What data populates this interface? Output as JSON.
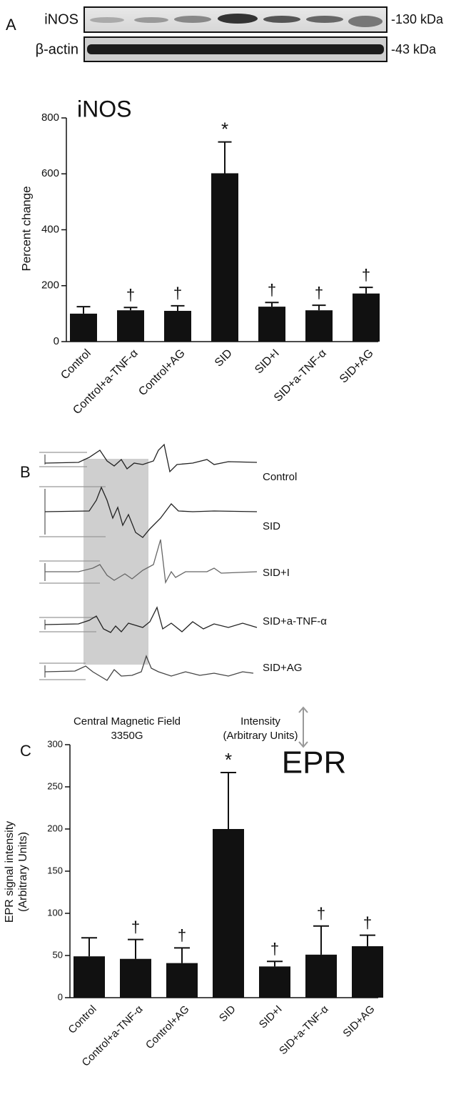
{
  "panel_labels": {
    "a": "A",
    "b": "B",
    "c": "C"
  },
  "blot": {
    "rows": [
      {
        "label": "iNOS",
        "marker": "-130 kDa"
      },
      {
        "label": "β-actin",
        "marker": "-43 kDa"
      }
    ]
  },
  "epr_spectra": {
    "traces": [
      "Control",
      "SID",
      "SID+I",
      "SID+a-TNF-α",
      "SID+AG"
    ],
    "field_label": "Central Magnetic Field",
    "field_value": "3350G",
    "intensity_label": "Intensity",
    "intensity_unit": "(Arbitrary Units)"
  },
  "chart_data": [
    {
      "type": "bar",
      "title": "iNOS",
      "y_label": [
        "Percent change"
      ],
      "categories": [
        "Control",
        "Control+a-TNF-α",
        "Control+AG",
        "SID",
        "SID+I",
        "SID+a-TNF-α",
        "SID+AG"
      ],
      "values": [
        100,
        112,
        110,
        602,
        125,
        112,
        172
      ],
      "errors": [
        25,
        10,
        18,
        112,
        15,
        18,
        22
      ],
      "annotations": [
        null,
        "†",
        "†",
        "*",
        "†",
        "†",
        "†"
      ],
      "color": "#111111",
      "ylim": [
        0,
        800
      ],
      "yticks": [
        0,
        200,
        400,
        600,
        800
      ]
    },
    {
      "type": "bar",
      "title": "EPR",
      "y_label": [
        "EPR signal intensity",
        "(Arbitrary Units)"
      ],
      "categories": [
        "Control",
        "Control+a-TNF-α",
        "Control+AG",
        "SID",
        "SID+I",
        "SID+a-TNF-α",
        "SID+AG"
      ],
      "values": [
        49,
        46,
        41,
        200,
        37,
        51,
        61
      ],
      "errors": [
        22,
        23,
        18,
        67,
        6,
        34,
        13
      ],
      "annotations": [
        null,
        "†",
        "†",
        "*",
        "†",
        "†",
        "†"
      ],
      "color": "#111111",
      "ylim": [
        0,
        300
      ],
      "yticks": [
        0,
        50,
        100,
        150,
        200,
        250,
        300
      ]
    }
  ]
}
